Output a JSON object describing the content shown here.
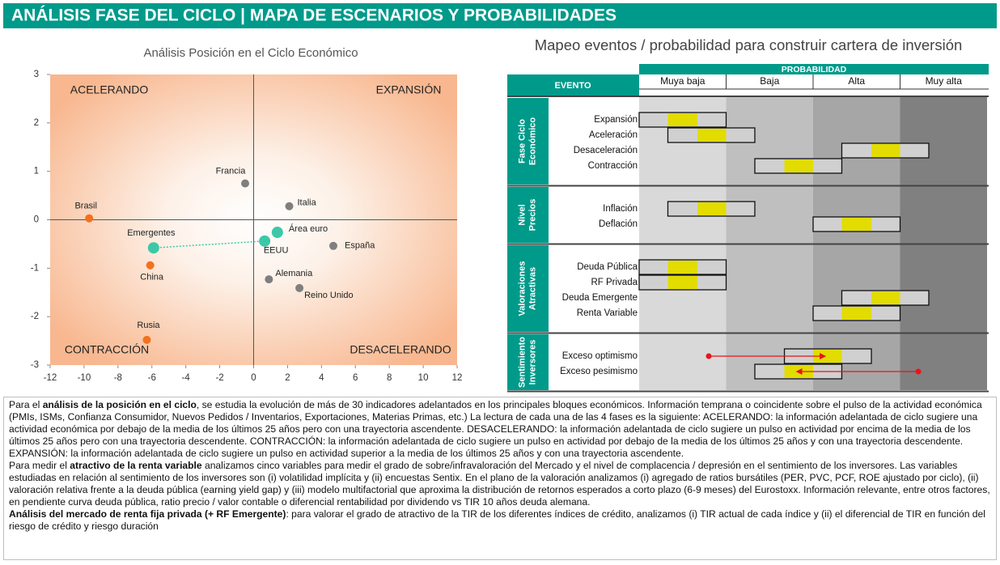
{
  "header": {
    "title": "ANÁLISIS FASE DEL CICLO | MAPA DE ESCENARIOS Y PROBABILIDADES"
  },
  "chart_data": {
    "type": "scatter",
    "title": "Análisis Posición en el Ciclo Económico",
    "labels": [
      "Francia",
      "Italia",
      "Brasil",
      "Emergentes",
      "Área euro",
      "EEUU",
      "España",
      "China",
      "Alemania",
      "Reino Unido",
      "Rusia"
    ],
    "x": [
      -0.5,
      2.1,
      -9.7,
      -5.9,
      1.4,
      0.65,
      4.7,
      -6.1,
      0.9,
      2.7,
      -6.3
    ],
    "values": [
      0.75,
      0.28,
      0.03,
      -0.58,
      -0.26,
      -0.44,
      -0.54,
      -0.94,
      -1.23,
      -1.41,
      -2.48
    ],
    "colors": [
      "#7f7f7f",
      "#7f7f7f",
      "#f4701f",
      "#3cc8a8",
      "#3cc8a8",
      "#3cc8a8",
      "#7f7f7f",
      "#f4701f",
      "#7f7f7f",
      "#7f7f7f",
      "#f4701f"
    ],
    "connector": [
      3,
      5
    ],
    "xlim": [
      -12,
      12
    ],
    "xticks": [
      -12,
      -10,
      -8,
      -6,
      -4,
      -2,
      0,
      2,
      4,
      6,
      8,
      10,
      12
    ],
    "ylim": [
      -3,
      3
    ],
    "yticks": [
      -3,
      -2,
      -1,
      0,
      1,
      2,
      3
    ],
    "quadrant_labels": {
      "top_left": "ACELERANDO",
      "top_right": "EXPANSIÓN",
      "bottom_left": "CONTRACCIÓN",
      "bottom_right": "DESACELERANDO"
    }
  },
  "scenario_map": {
    "title": "Mapeo eventos / probabilidad para construir cartera de inversión",
    "header": "PROBABILIDAD",
    "event_header": "EVENTO",
    "levels": [
      "Muya baja",
      "Baja",
      "Alta",
      "Muy alta"
    ],
    "level_colors": [
      "#d9d9d9",
      "#bfbfbf",
      "#a6a6a6",
      "#808080"
    ],
    "marker_color": "#e2dc00",
    "arrow_color": "#e8141b",
    "groups": [
      {
        "name": [
          "Fase Ciclo",
          "Económico"
        ],
        "rows": [
          {
            "label": "Expansión",
            "range": [
              0,
              1
            ],
            "marker": [
              0.33,
              0.67
            ]
          },
          {
            "label": "Aceleración",
            "range": [
              0.33,
              1.33
            ],
            "marker": [
              0.67,
              1
            ]
          },
          {
            "label": "Desaceleración",
            "range": [
              2.33,
              3.33
            ],
            "marker": [
              2.67,
              3
            ]
          },
          {
            "label": "Contracción",
            "range": [
              1.33,
              2.33
            ],
            "marker": [
              1.67,
              2
            ]
          }
        ]
      },
      {
        "name": [
          "Nivel",
          "Precios"
        ],
        "rows": [
          {
            "label": "Inflación",
            "range": [
              0.33,
              1.33
            ],
            "marker": [
              0.67,
              1
            ]
          },
          {
            "label": "Deflación",
            "range": [
              2,
              3
            ],
            "marker": [
              2.33,
              2.67
            ]
          }
        ]
      },
      {
        "name": [
          "Valoraciones",
          "Atractivas"
        ],
        "rows": [
          {
            "label": "Deuda Pública",
            "range": [
              0,
              1
            ],
            "marker": [
              0.33,
              0.67
            ]
          },
          {
            "label": "RF Privada",
            "range": [
              0,
              1
            ],
            "marker": [
              0.33,
              0.67
            ]
          },
          {
            "label": "Deuda Emergente",
            "range": [
              2.33,
              3.33
            ],
            "marker": [
              2.67,
              3
            ]
          },
          {
            "label": "Renta Variable",
            "range": [
              2,
              3
            ],
            "marker": [
              2.33,
              2.67
            ]
          }
        ]
      },
      {
        "name": [
          "Sentimiento",
          "Inversores"
        ],
        "rows": [
          {
            "label": "Exceso optimismo",
            "range": [
              1.67,
              2.67
            ],
            "marker": [
              2,
              2.33
            ],
            "arrow": [
              0.8,
              2.15
            ]
          },
          {
            "label": "Exceso pesimismo",
            "range": [
              1.33,
              2.33
            ],
            "marker": [
              1.67,
              2
            ],
            "arrow": [
              3.21,
              1.8
            ]
          }
        ]
      }
    ]
  },
  "text": {
    "paragraphs": [
      [
        {
          "text": "Para el "
        },
        {
          "text": "análisis de la posición en el ciclo",
          "bold": true
        },
        {
          "text": ",  se estudia la evolución de más de 30 indicadores adelantados en los principales bloques económicos. Información temprana o coincidente sobre el pulso de la actividad económica (PMIs, ISMs, Confianza Consumidor, Nuevos Pedidos / Inventarios, Exportaciones, Materias Primas, etc.) La lectura de cada una de las 4 fases es la siguiente: ACELERANDO: la información adelantada de ciclo sugiere una actividad económica por debajo de la media de los últimos 25 años pero con una trayectoria ascendente. DESACELERANDO: la información adelantada de ciclo sugiere un pulso en actividad por encima de la media de los últimos 25 años pero con una trayectoria descendente. CONTRACCIÓN: la información adelantada de ciclo sugiere un pulso en actividad por debajo de la media de los últimos 25 años y con una trayectoria descendente. EXPANSIÓN: la información adelantada de ciclo sugiere un pulso en actividad  superior a la media de los últimos 25 años y con una trayectoria ascendente."
        }
      ],
      [
        {
          "text": "Para medir el "
        },
        {
          "text": "atractivo de la renta variable",
          "bold": true
        },
        {
          "text": " analizamos cinco variables para medir el grado de sobre/infravaloración del Mercado y el nivel de complacencia / depresión en el sentimiento de los inversores. Las variables estudiadas en relación al sentimiento de los inversores son (i) volatilidad implícita y (ii) encuestas Sentix. En el plano de la valoración analizamos (i) agregado de ratios bursátiles (PER, PVC, PCF, ROE ajustado por ciclo), (ii) valoración relativa frente a la deuda pública (earning yield gap) y (iii) modelo multifactorial que aproxima la distribución de retornos esperados a corto plazo (6-9 meses) del Eurostoxx. Información relevante, entre otros factores, en pendiente curva deuda pública, ratio precio / valor contable o diferencial rentabilidad por dividendo vs TIR 10 años deuda alemana."
        }
      ],
      [
        {
          "text": "Análisis del mercado de renta fija privada (+ RF Emergente)",
          "bold": true
        },
        {
          "text": ": para valorar el grado de atractivo de la TIR de los diferentes índices de crédito, analizamos (i) TIR actual de cada índice y (ii) el diferencial de TIR en función del riesgo de crédito y riesgo duración"
        }
      ]
    ]
  }
}
